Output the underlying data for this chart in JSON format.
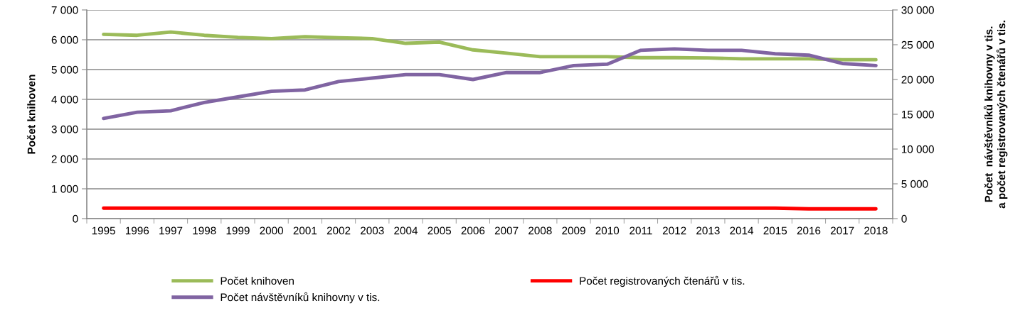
{
  "chart_data": {
    "type": "line",
    "ylabel": "Počet knihoven",
    "y2label": "Počet  návštěvníků knihovny v tis.\na počet registrovaných čtenářů v tis.",
    "categories": [
      "1995",
      "1996",
      "1997",
      "1998",
      "1999",
      "2000",
      "2001",
      "2002",
      "2003",
      "2004",
      "2005",
      "2006",
      "2007",
      "2008",
      "2009",
      "2010",
      "2011",
      "2012",
      "2013",
      "2014",
      "2015",
      "2016",
      "2017",
      "2018"
    ],
    "series": [
      {
        "name": "Počet knihoven",
        "color": "#9bbb59",
        "values": [
          6180,
          6150,
          6260,
          6150,
          6080,
          6040,
          6100,
          6070,
          6040,
          5880,
          5920,
          5660,
          5550,
          5430,
          5430,
          5430,
          5400,
          5400,
          5390,
          5360,
          5360,
          5360,
          5330,
          5330
        ]
      },
      {
        "name": "Počet registrovaných čtenářů v tis.",
        "color": "#ff0000",
        "axis": "y2",
        "values": [
          1500,
          1500,
          1500,
          1500,
          1500,
          1500,
          1500,
          1500,
          1500,
          1500,
          1500,
          1500,
          1500,
          1500,
          1500,
          1500,
          1500,
          1500,
          1500,
          1500,
          1500,
          1400,
          1400,
          1400
        ]
      },
      {
        "name": "Počet návštěvníků knihovny v tis.",
        "color": "#8064a2",
        "axis": "y2",
        "values": [
          14400,
          15300,
          15500,
          16700,
          17500,
          18300,
          18500,
          19700,
          20200,
          20700,
          20700,
          20000,
          21000,
          21000,
          22000,
          22200,
          24200,
          24400,
          24200,
          24200,
          23700,
          23500,
          22300,
          22000
        ]
      }
    ],
    "ylim": [
      0,
      7000
    ],
    "yticks": [
      0,
      {
        "value": 1000,
        "label": "1 000"
      },
      {
        "value": 2000,
        "label": "2 000"
      },
      {
        "value": 3000,
        "label": "3 000"
      },
      {
        "value": 4000,
        "label": "4 000"
      },
      {
        "value": 5000,
        "label": "5 000"
      },
      {
        "value": 6000,
        "label": "6 000"
      },
      {
        "value": 7000,
        "label": "7 000"
      }
    ],
    "y2lim": [
      0,
      30000
    ],
    "y2ticks": [
      0,
      {
        "value": 5000,
        "label": "5 000"
      },
      {
        "value": 10000,
        "label": "10 000"
      },
      {
        "value": 15000,
        "label": "15 000"
      },
      {
        "value": 20000,
        "label": "20 000"
      },
      {
        "value": 25000,
        "label": "25 000"
      },
      {
        "value": 30000,
        "label": "30 000"
      }
    ],
    "grid": "y",
    "legend": "bottom",
    "marker": "none",
    "line_style": "solid"
  }
}
